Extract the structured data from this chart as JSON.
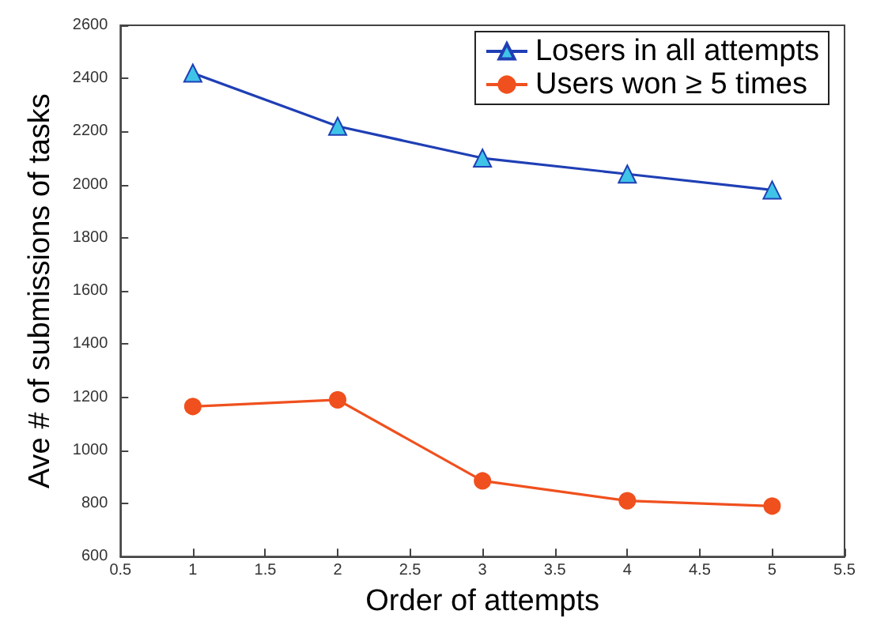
{
  "chart_data": {
    "type": "line",
    "xlabel": "Order of attempts",
    "ylabel": "Ave # of submissions of tasks",
    "x": [
      1,
      2,
      3,
      4,
      5
    ],
    "series": [
      {
        "name": "Losers in all attempts",
        "color": "#1f3fb5",
        "marker": "triangle",
        "values": [
          2420,
          2220,
          2100,
          2040,
          1980
        ]
      },
      {
        "name": "Users won ≥ 5 times",
        "color": "#f0501e",
        "marker": "circle",
        "values": [
          1165,
          1190,
          885,
          810,
          790
        ]
      }
    ],
    "xlim": [
      0.5,
      5.5
    ],
    "xticks": [
      0.5,
      1,
      1.5,
      2,
      2.5,
      3,
      3.5,
      4,
      4.5,
      5,
      5.5
    ],
    "ylim": [
      600,
      2600
    ],
    "yticks": [
      600,
      800,
      1000,
      1200,
      1400,
      1600,
      1800,
      2000,
      2200,
      2400,
      2600
    ],
    "grid": false,
    "legend": "top right",
    "line_style": "solid"
  }
}
